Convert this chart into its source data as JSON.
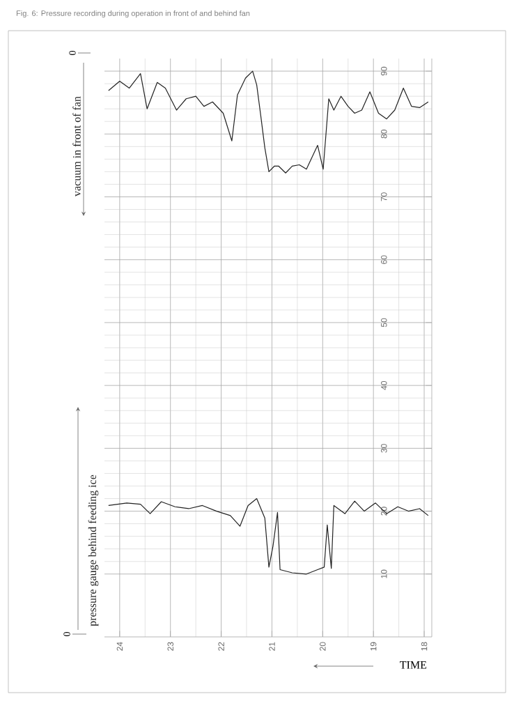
{
  "chart_data": {
    "type": "line",
    "title": "Fig. 6:    Pressure recording during operation in front of and behind fan",
    "xlabel": "TIME",
    "annotations": [
      "0",
      "0"
    ],
    "xlim": [
      24.3,
      17.85
    ],
    "xticks": [
      24,
      23,
      22,
      21,
      20,
      19,
      18
    ],
    "ylim": [
      0,
      92
    ],
    "yticks": [
      10,
      20,
      30,
      40,
      50,
      60,
      70,
      80,
      90
    ],
    "grid": true,
    "marker": "none",
    "line_style": "solid",
    "series": [
      {
        "name": "vacuum in front of fan",
        "color": "#222222",
        "x": [
          24.22,
          24.0,
          23.81,
          23.59,
          23.46,
          23.26,
          23.1,
          22.88,
          22.69,
          22.5,
          22.34,
          22.17,
          21.96,
          21.79,
          21.68,
          21.52,
          21.38,
          21.3,
          21.22,
          21.14,
          21.06,
          20.95,
          20.87,
          20.73,
          20.6,
          20.46,
          20.32,
          20.1,
          19.99,
          19.88,
          19.78,
          19.64,
          19.5,
          19.37,
          19.23,
          19.07,
          18.9,
          18.74,
          18.58,
          18.41,
          18.25,
          18.09,
          17.92
        ],
        "values": [
          86.9,
          88.4,
          87.3,
          89.6,
          84.0,
          88.2,
          87.3,
          83.8,
          85.6,
          86.0,
          84.4,
          85.1,
          83.3,
          78.9,
          86.2,
          88.9,
          90.0,
          87.8,
          82.9,
          77.8,
          74.0,
          74.9,
          74.9,
          73.8,
          74.9,
          75.1,
          74.4,
          78.2,
          74.4,
          85.6,
          83.8,
          86.0,
          84.4,
          83.3,
          83.8,
          86.7,
          83.3,
          82.4,
          83.8,
          87.3,
          84.4,
          84.2,
          85.1
        ]
      },
      {
        "name": "pressure gauge behind feeding ice",
        "color": "#222222",
        "x": [
          24.22,
          23.86,
          23.59,
          23.4,
          23.18,
          22.91,
          22.64,
          22.37,
          22.09,
          21.82,
          21.63,
          21.47,
          21.3,
          21.14,
          21.06,
          20.98,
          20.89,
          20.84,
          20.6,
          20.32,
          20.1,
          19.97,
          19.91,
          19.83,
          19.78,
          19.56,
          19.37,
          19.18,
          18.96,
          18.74,
          18.52,
          18.31,
          18.09,
          17.92
        ],
        "values": [
          20.9,
          21.3,
          21.1,
          19.6,
          21.5,
          20.7,
          20.4,
          20.9,
          20.0,
          19.3,
          17.6,
          20.9,
          22.0,
          18.9,
          11.1,
          14.4,
          19.8,
          10.7,
          10.2,
          10.0,
          10.7,
          11.1,
          17.8,
          10.9,
          20.9,
          19.6,
          21.6,
          20.0,
          21.3,
          19.6,
          20.7,
          20.0,
          20.4,
          19.3
        ]
      }
    ]
  }
}
